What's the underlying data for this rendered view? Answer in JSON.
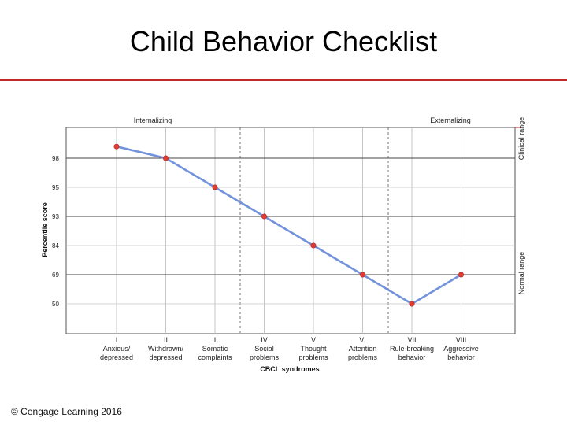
{
  "slide": {
    "title": "Child Behavior Checklist",
    "footer": "© Cengage Learning 2016"
  },
  "chart_data": {
    "type": "line",
    "xlabel": "CBCL syndromes",
    "ylabel": "Percentile score",
    "groups": {
      "left": "Internalizing",
      "right": "Externalizing"
    },
    "range_labels": {
      "top": "Clinical range",
      "bottom": "Normal range"
    },
    "y_ticks": [
      "98",
      "95",
      "93",
      "84",
      "69",
      "50"
    ],
    "categories": [
      {
        "numeral": "I",
        "line1": "Anxious/",
        "line2": "depressed"
      },
      {
        "numeral": "II",
        "line1": "Withdrawn/",
        "line2": "depressed"
      },
      {
        "numeral": "III",
        "line1": "Somatic",
        "line2": "complaints"
      },
      {
        "numeral": "IV",
        "line1": "Social",
        "line2": "problems"
      },
      {
        "numeral": "V",
        "line1": "Thought",
        "line2": "problems"
      },
      {
        "numeral": "VI",
        "line1": "Attention",
        "line2": "problems"
      },
      {
        "numeral": "VII",
        "line1": "Rule-breaking",
        "line2": "behavior"
      },
      {
        "numeral": "VIII",
        "line1": "Aggressive",
        "line2": "behavior"
      }
    ],
    "series": [
      {
        "values": [
          99,
          98,
          95,
          93,
          84,
          69,
          50,
          69
        ]
      }
    ],
    "tick_levels": [
      6,
      5,
      4,
      3,
      2,
      1
    ],
    "point_levels": [
      6.4,
      6,
      5,
      4,
      3,
      2,
      1,
      2
    ],
    "colors": {
      "line": "#5b7fd6",
      "marker": "#e23b32",
      "range_rule": "#c0282d"
    }
  }
}
